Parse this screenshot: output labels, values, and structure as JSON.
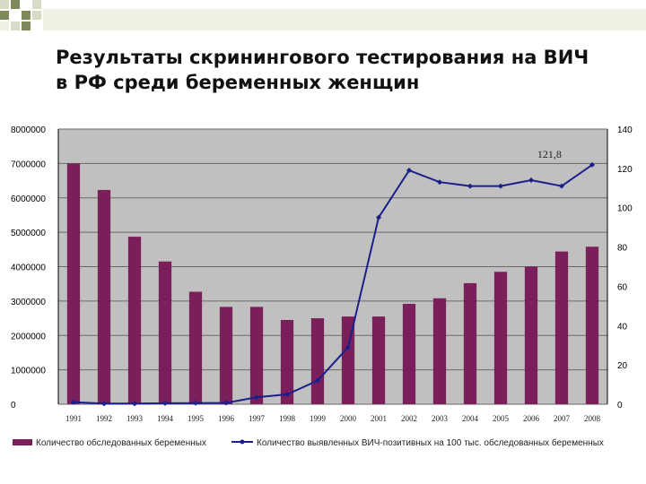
{
  "slide": {
    "title_line1": "Результаты скринингового тестирования на ВИЧ",
    "title_line2": "в РФ среди беременных женщин",
    "colors": {
      "deco_dark": "#7f8a5a",
      "deco_light": "#d8dcc6",
      "deco_fade": "#eef0e4"
    }
  },
  "chart_data": {
    "type": "bar",
    "categories": [
      "1991",
      "1992",
      "1993",
      "1994",
      "1995",
      "1996",
      "1997",
      "1998",
      "1999",
      "2000",
      "2001",
      "2002",
      "2003",
      "2004",
      "2005",
      "2006",
      "2007",
      "2008"
    ],
    "series": [
      {
        "name": "Количество обследованных беременных",
        "type": "bar",
        "axis": "left",
        "color": "#7b1f5a",
        "values": [
          7000000,
          6230000,
          4870000,
          4150000,
          3270000,
          2830000,
          2830000,
          2450000,
          2500000,
          2550000,
          2550000,
          2920000,
          3080000,
          3520000,
          3850000,
          4000000,
          4440000,
          4580000
        ]
      },
      {
        "name": "Количество выявленных ВИЧ-позитивных на 100 тыс. обследованных беременных",
        "type": "line",
        "axis": "right",
        "color": "#1a1f8c",
        "values": [
          1.0,
          0.3,
          0.3,
          0.5,
          0.6,
          0.7,
          3.5,
          5.0,
          12.0,
          29.0,
          95.0,
          119.0,
          113.0,
          111.0,
          111.0,
          114.0,
          111.0,
          121.8
        ]
      }
    ],
    "y_left": {
      "ylim": [
        0,
        8000000
      ],
      "ticks": [
        "0",
        "1000000",
        "2000000",
        "3000000",
        "4000000",
        "5000000",
        "6000000",
        "7000000",
        "8000000"
      ]
    },
    "y_right": {
      "ylim": [
        0,
        140
      ],
      "ticks": [
        "0",
        "20",
        "40",
        "60",
        "80",
        "100",
        "120",
        "140"
      ]
    },
    "annotation": "121,8",
    "grid": "horizontal",
    "legend_position": "bottom",
    "plot_bg": "#c0c0c0",
    "grid_color": "#6a6a6a"
  }
}
